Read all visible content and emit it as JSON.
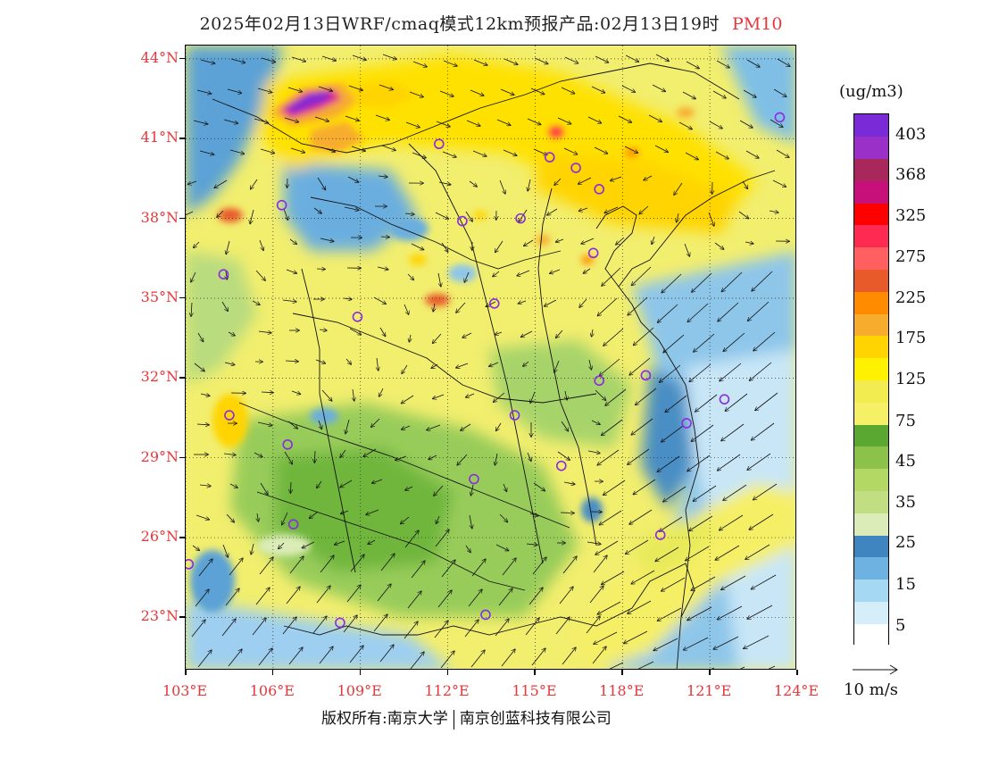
{
  "title": {
    "prefix": "2025年02月13日WRF/cmaq模式12km预报产品:02月13日19时",
    "species": "PM10"
  },
  "axes": {
    "lat_labels": [
      {
        "text": "44°N",
        "value": 44
      },
      {
        "text": "41°N",
        "value": 41
      },
      {
        "text": "38°N",
        "value": 38
      },
      {
        "text": "35°N",
        "value": 35
      },
      {
        "text": "32°N",
        "value": 32
      },
      {
        "text": "29°N",
        "value": 29
      },
      {
        "text": "26°N",
        "value": 26
      },
      {
        "text": "23°N",
        "value": 23
      }
    ],
    "lon_labels": [
      {
        "text": "103°E",
        "value": 103
      },
      {
        "text": "106°E",
        "value": 106
      },
      {
        "text": "109°E",
        "value": 109
      },
      {
        "text": "112°E",
        "value": 112
      },
      {
        "text": "115°E",
        "value": 115
      },
      {
        "text": "118°E",
        "value": 118
      },
      {
        "text": "121°E",
        "value": 121
      },
      {
        "text": "124°E",
        "value": 124
      }
    ],
    "lon_range": [
      103,
      124
    ],
    "lat_range": [
      21,
      44.5
    ]
  },
  "legend": {
    "unit": "(ug/m3)",
    "colors_bottom_to_top": [
      "#ffffff",
      "#d6eefa",
      "#a5d8f2",
      "#6db2e0",
      "#3f86c0",
      "#dcecb8",
      "#c2de82",
      "#b3d864",
      "#8cc24a",
      "#5aa832",
      "#f5f066",
      "#f2ec50",
      "#fff200",
      "#ffd400",
      "#f7ac2e",
      "#ff8c00",
      "#e85a2a",
      "#ff5f5f",
      "#ff2a52",
      "#ff0000",
      "#c8107a",
      "#a8285c",
      "#9a30c8",
      "#7a2ad6"
    ],
    "labels": [
      "5",
      "15",
      "25",
      "35",
      "45",
      "75",
      "125",
      "175",
      "225",
      "275",
      "325",
      "368",
      "403"
    ]
  },
  "wind_reference": {
    "label": "10 m/s"
  },
  "footer": {
    "left": "版权所有:南京大学",
    "right": "南京创蓝科技有限公司"
  },
  "colors": {
    "axis_label": "#e8363a",
    "city_marker": "#8a2be2",
    "coast_line": "#000000"
  },
  "cities": [
    {
      "lon": 103.1,
      "lat": 25.0
    },
    {
      "lon": 104.3,
      "lat": 35.9
    },
    {
      "lon": 104.5,
      "lat": 30.6
    },
    {
      "lon": 106.5,
      "lat": 29.5
    },
    {
      "lon": 106.7,
      "lat": 26.5
    },
    {
      "lon": 108.3,
      "lat": 22.8
    },
    {
      "lon": 108.9,
      "lat": 34.3
    },
    {
      "lon": 106.3,
      "lat": 38.5
    },
    {
      "lon": 111.7,
      "lat": 40.8
    },
    {
      "lon": 112.5,
      "lat": 37.9
    },
    {
      "lon": 114.5,
      "lat": 38.0
    },
    {
      "lon": 113.6,
      "lat": 34.8
    },
    {
      "lon": 114.3,
      "lat": 30.6
    },
    {
      "lon": 112.9,
      "lat": 28.2
    },
    {
      "lon": 115.9,
      "lat": 28.7
    },
    {
      "lon": 113.3,
      "lat": 23.1
    },
    {
      "lon": 119.3,
      "lat": 26.1
    },
    {
      "lon": 117.2,
      "lat": 31.9
    },
    {
      "lon": 118.8,
      "lat": 32.1
    },
    {
      "lon": 120.2,
      "lat": 30.3
    },
    {
      "lon": 121.5,
      "lat": 31.2
    },
    {
      "lon": 117.0,
      "lat": 36.7
    },
    {
      "lon": 116.4,
      "lat": 39.9
    },
    {
      "lon": 117.2,
      "lat": 39.1
    },
    {
      "lon": 115.5,
      "lat": 40.3
    },
    {
      "lon": 123.4,
      "lat": 41.8
    }
  ]
}
